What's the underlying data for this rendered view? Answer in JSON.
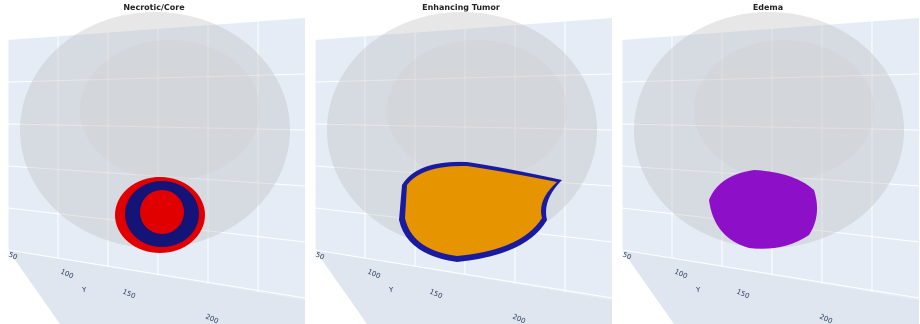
{
  "panels": [
    {
      "title": "Necrotic/Core",
      "ticks": [
        "50",
        "100",
        "150",
        "200"
      ],
      "axis_label": "Y"
    },
    {
      "title": "Enhancing Tumor",
      "ticks": [
        "50",
        "100",
        "150",
        "200"
      ],
      "axis_label": "Y"
    },
    {
      "title": "Edema",
      "ticks": [
        "50",
        "100",
        "150",
        "200"
      ],
      "axis_label": "Y"
    }
  ]
}
